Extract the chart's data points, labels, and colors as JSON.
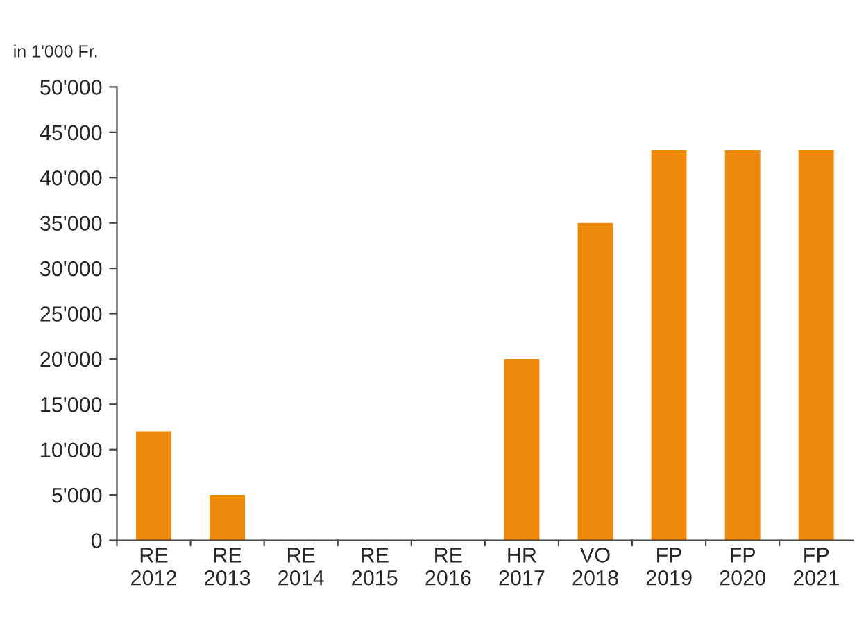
{
  "chart_data": {
    "type": "bar",
    "ylabel": "in 1'000 Fr.",
    "categories": [
      "RE\n2012",
      "RE\n2013",
      "RE\n2014",
      "RE\n2015",
      "RE\n2016",
      "HR\n2017",
      "VO\n2018",
      "FP\n2019",
      "FP\n2020",
      "FP\n2021"
    ],
    "values": [
      12000,
      5000,
      0,
      0,
      0,
      20000,
      35000,
      43000,
      43000,
      43000
    ],
    "color": "#f08a0c",
    "ylim": [
      0,
      50000
    ],
    "yticks": [
      0,
      {
        "value": 5000,
        "label": "5'000"
      },
      {
        "value": 10000,
        "label": "10'000"
      },
      {
        "value": 15000,
        "label": "15'000"
      },
      {
        "value": 20000,
        "label": "20'000"
      },
      {
        "value": 25000,
        "label": "25'000"
      },
      {
        "value": 30000,
        "label": "30'000"
      },
      {
        "value": 35000,
        "label": "35'000"
      },
      {
        "value": 40000,
        "label": "40'000"
      },
      {
        "value": 45000,
        "label": "45'000"
      },
      {
        "value": 50000,
        "label": "50'000"
      }
    ],
    "grid": false
  }
}
